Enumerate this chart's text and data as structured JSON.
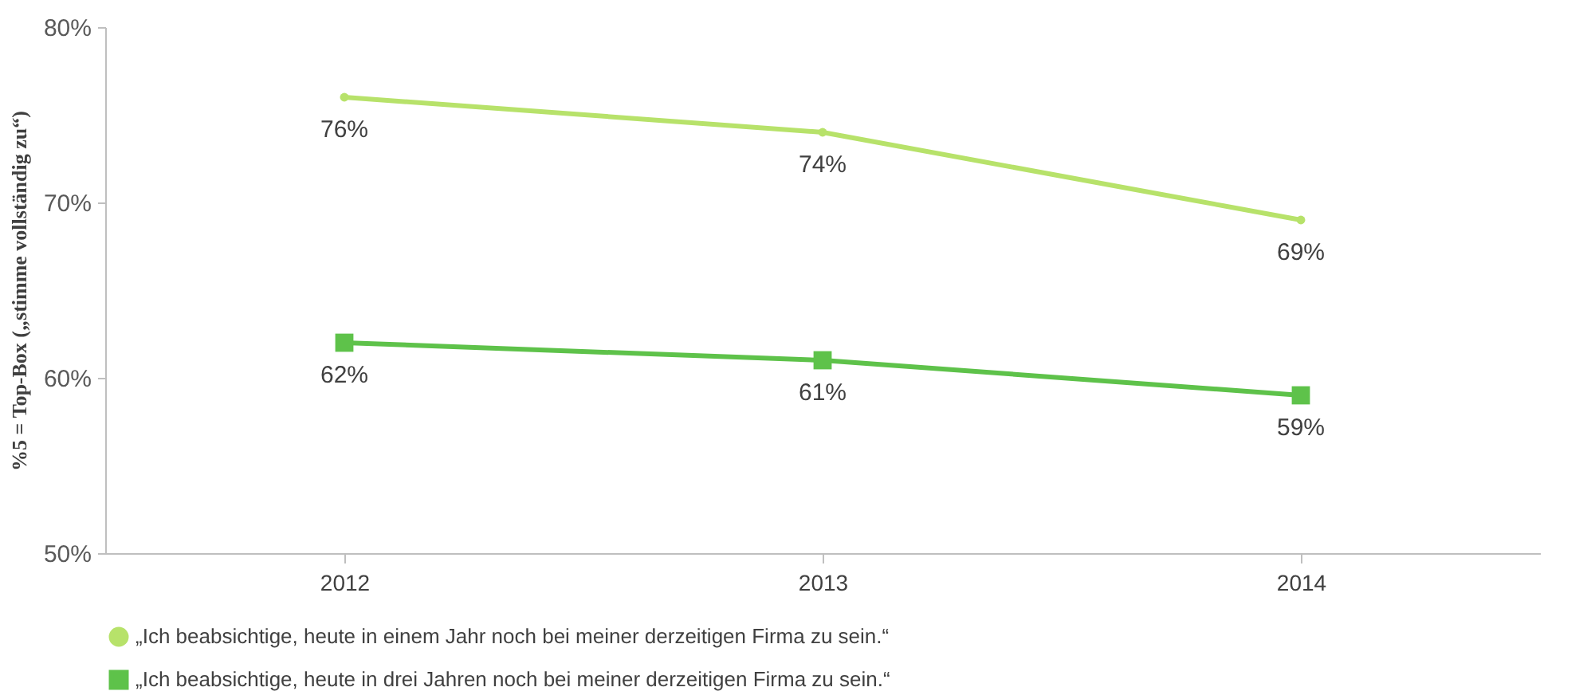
{
  "chart_data": {
    "type": "line",
    "ylabel": "%5 = Top-Box („stimme vollständig zu“)",
    "categories": [
      "2012",
      "2013",
      "2014"
    ],
    "ylim": [
      50,
      80
    ],
    "yticks": [
      {
        "value": 50,
        "label": "50%"
      },
      {
        "value": 60,
        "label": "60%"
      },
      {
        "value": 70,
        "label": "70%"
      },
      {
        "value": 80,
        "label": "80%"
      }
    ],
    "series": [
      {
        "name": "„Ich beabsichtige, heute in einem Jahr noch bei meiner derzeitigen Firma zu sein.“",
        "color": "#b7e26a",
        "marker": "circle",
        "values": [
          76,
          74,
          69
        ],
        "value_labels": [
          "76%",
          "74%",
          "69%"
        ]
      },
      {
        "name": "„Ich beabsichtige, heute in drei Jahren noch bei meiner derzeitigen Firma zu sein.“",
        "color": "#5ec24a",
        "marker": "square",
        "values": [
          62,
          61,
          59
        ],
        "value_labels": [
          "62%",
          "61%",
          "59%"
        ]
      }
    ],
    "legend": "bottom",
    "grid": false
  }
}
